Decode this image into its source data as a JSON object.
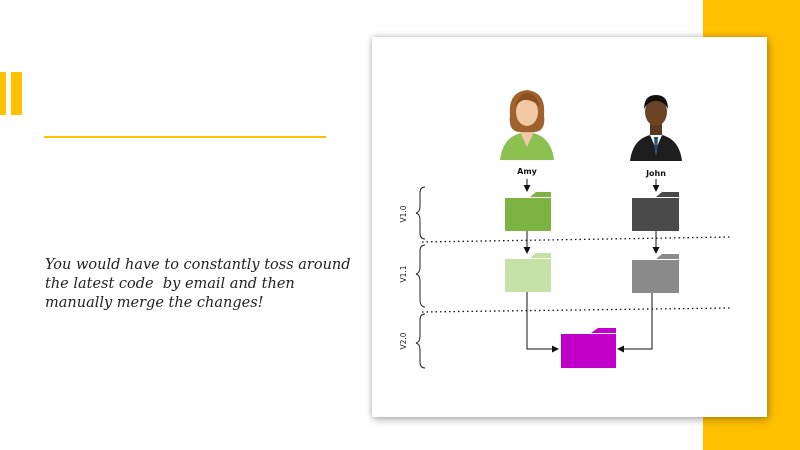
{
  "slide": {
    "body_lines": [
      "You would have to constantly toss around",
      "the latest code  by email and then",
      "manually merge the changes!"
    ]
  },
  "diagram": {
    "people": [
      {
        "name": "Amy",
        "icon": "woman-avatar-icon"
      },
      {
        "name": "John",
        "icon": "man-avatar-icon"
      }
    ],
    "versions": [
      "V1.0",
      "V1.1",
      "V2.0"
    ],
    "colors": {
      "accent": "#FFC000",
      "amy_v10": "#7CB342",
      "amy_v11": "#C5E1A5",
      "john_v10": "#4A4A4A",
      "john_v11": "#8A8A8A",
      "merged_v20": "#C000C8"
    }
  }
}
